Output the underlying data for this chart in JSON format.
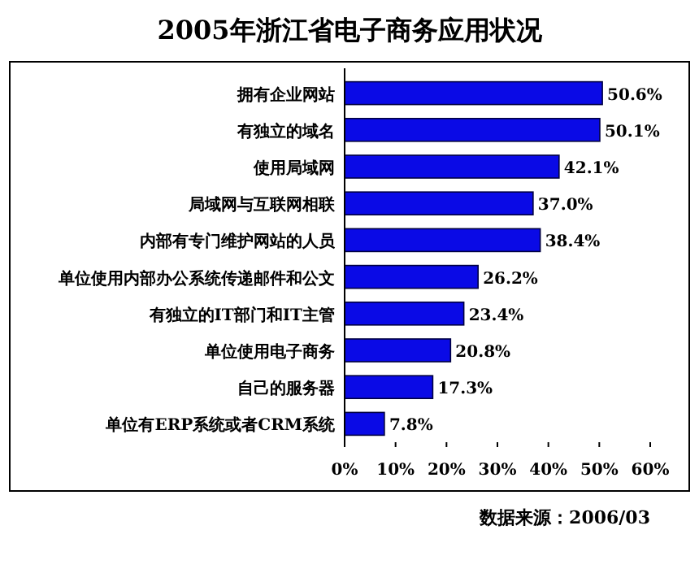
{
  "chart_data": {
    "type": "bar",
    "orientation": "horizontal",
    "title": "2005年浙江省电子商务应用状况",
    "categories": [
      "拥有企业网站",
      "有独立的域名",
      "使用局域网",
      "局域网与互联网相联",
      "内部有专门维护网站的人员",
      "单位使用内部办公系统传递邮件和公文",
      "有独立的IT部门和IT主管",
      "单位使用电子商务",
      "自己的服务器",
      "单位有ERP系统或者CRM系统"
    ],
    "values": [
      50.6,
      50.1,
      42.1,
      37.0,
      38.4,
      26.2,
      23.4,
      20.8,
      17.3,
      7.8
    ],
    "value_labels": [
      "50.6%",
      "50.1%",
      "42.1%",
      "37.0%",
      "38.4%",
      "26.2%",
      "23.4%",
      "20.8%",
      "17.3%",
      "7.8%"
    ],
    "color": "#0a0ae6",
    "xlim": [
      0,
      60
    ],
    "xticks": [
      {
        "value": 0,
        "label": "0%"
      },
      {
        "value": 10,
        "label": "10%"
      },
      {
        "value": 20,
        "label": "20%"
      },
      {
        "value": 30,
        "label": "30%"
      },
      {
        "value": 40,
        "label": "40%"
      },
      {
        "value": 50,
        "label": "50%"
      },
      {
        "value": 60,
        "label": "60%"
      }
    ],
    "annotations": [
      "数据来源：2006/03"
    ]
  }
}
